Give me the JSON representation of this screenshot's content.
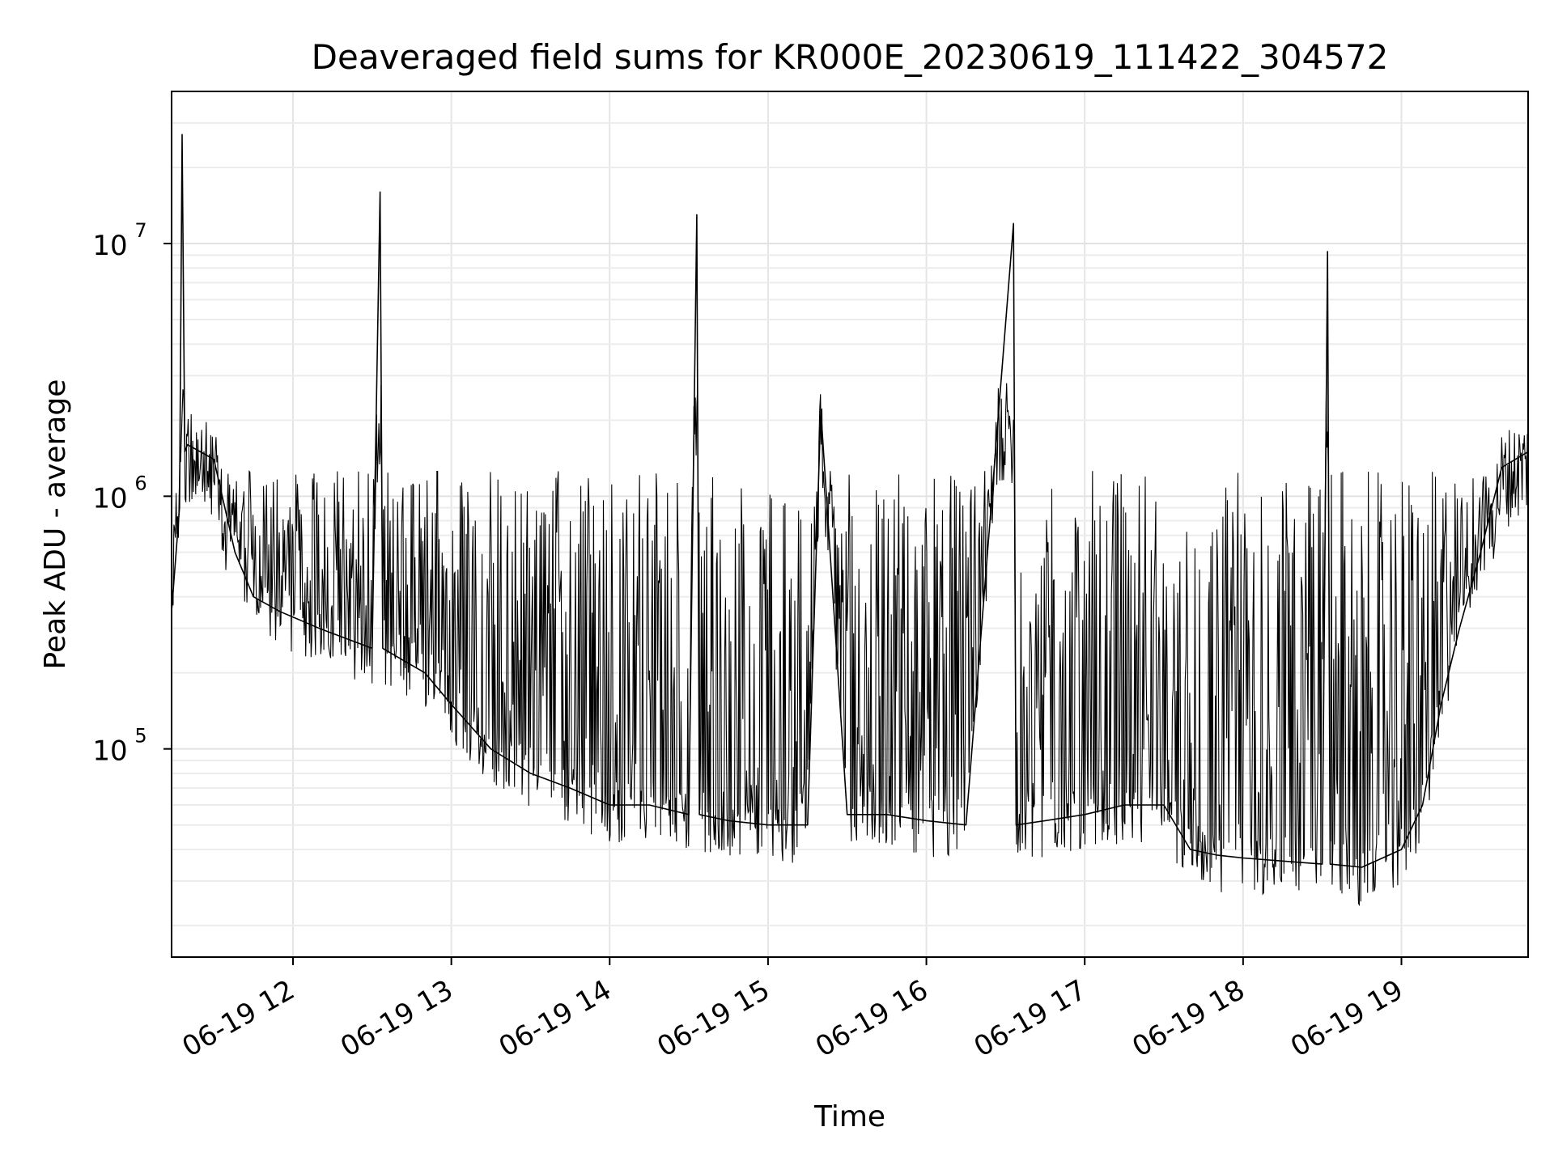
{
  "chart_data": {
    "type": "line",
    "title": "Deaveraged field sums for KR000E_20230619_111422_304572",
    "xlabel": "Time",
    "ylabel": "Peak ADU - average",
    "y_scale": "log",
    "ylim": [
      15000,
      40000000
    ],
    "xlim": [
      "2023-06-19 11:14",
      "2023-06-19 19:48"
    ],
    "x_ticks": [
      "2023-06-19 12:00",
      "2023-06-19 13:00",
      "2023-06-19 14:00",
      "2023-06-19 15:00",
      "2023-06-19 16:00",
      "2023-06-19 17:00",
      "2023-06-19 18:00",
      "2023-06-19 19:00"
    ],
    "x_tick_labels": [
      "06-19 12",
      "06-19 13",
      "06-19 14",
      "06-19 15",
      "06-19 16",
      "06-19 17",
      "06-19 18",
      "06-19 19"
    ],
    "y_ticks": [
      100000,
      1000000,
      10000000
    ],
    "y_tick_base": "10",
    "y_tick_exponents": [
      "5",
      "6",
      "7"
    ],
    "grid": true,
    "line_color": "#000000",
    "series": [
      {
        "x": [
          "2023-06-19 11:14",
          "2023-06-19 11:17",
          "2023-06-19 11:18",
          "2023-06-19 11:19",
          "2023-06-19 11:20",
          "2023-06-19 11:30",
          "2023-06-19 11:38",
          "2023-06-19 11:45",
          "2023-06-19 11:55",
          "2023-06-19 12:10",
          "2023-06-19 12:30",
          "2023-06-19 12:33",
          "2023-06-19 12:34",
          "2023-06-19 12:50",
          "2023-06-19 13:00",
          "2023-06-19 13:15",
          "2023-06-19 13:30",
          "2023-06-19 13:45",
          "2023-06-19 14:00",
          "2023-06-19 14:15",
          "2023-06-19 14:30",
          "2023-06-19 14:33",
          "2023-06-19 14:34",
          "2023-06-19 14:45",
          "2023-06-19 15:00",
          "2023-06-19 15:15",
          "2023-06-19 15:20",
          "2023-06-19 15:30",
          "2023-06-19 15:45",
          "2023-06-19 16:00",
          "2023-06-19 16:15",
          "2023-06-19 16:33",
          "2023-06-19 16:34",
          "2023-06-19 16:45",
          "2023-06-19 17:00",
          "2023-06-19 17:15",
          "2023-06-19 17:30",
          "2023-06-19 17:40",
          "2023-06-19 17:50",
          "2023-06-19 18:00",
          "2023-06-19 18:15",
          "2023-06-19 18:30",
          "2023-06-19 18:32",
          "2023-06-19 18:33",
          "2023-06-19 18:45",
          "2023-06-19 19:00",
          "2023-06-19 19:08",
          "2023-06-19 19:15",
          "2023-06-19 19:22",
          "2023-06-19 19:30",
          "2023-06-19 19:38",
          "2023-06-19 19:48"
        ],
        "values": [
          350000,
          900000,
          27000000,
          1500000,
          1600000,
          1400000,
          600000,
          400000,
          350000,
          300000,
          250000,
          16000000,
          250000,
          200000,
          150000,
          100000,
          80000,
          70000,
          60000,
          60000,
          55000,
          13000000,
          55000,
          52000,
          50000,
          50000,
          2200000,
          55000,
          55000,
          52000,
          50000,
          12000000,
          50000,
          52000,
          55000,
          60000,
          60000,
          40000,
          38000,
          37000,
          36000,
          35000,
          9300000,
          35000,
          34000,
          40000,
          60000,
          150000,
          300000,
          600000,
          1300000,
          1500000
        ]
      }
    ]
  }
}
